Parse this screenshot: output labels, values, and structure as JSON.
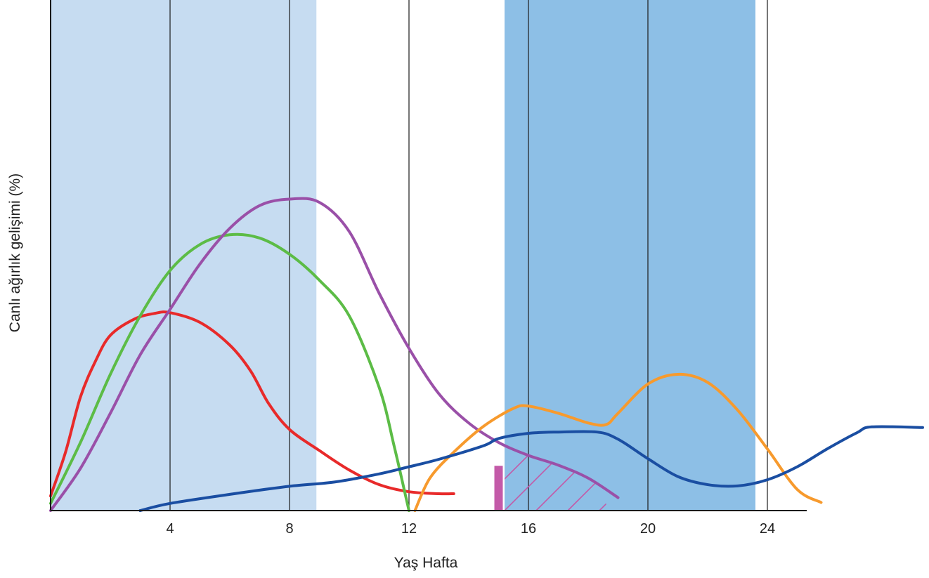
{
  "chart_data": {
    "type": "line",
    "xlabel": "Yaş Hafta",
    "ylabel": "Canlı ağırlık gelişimi (%)",
    "xlim": [
      0,
      26.3
    ],
    "ylim": [
      0,
      100
    ],
    "x_ticks": [
      4,
      8,
      12,
      16,
      20,
      24
    ],
    "y_ticks": [],
    "grid": {
      "vertical": true,
      "horizontal": false
    },
    "shaded_ranges": [
      {
        "x": [
          0,
          8.9
        ],
        "color": "#c6dcf1"
      },
      {
        "x": [
          15.2,
          23.6
        ],
        "color": "#8dbfe6"
      }
    ],
    "marker_bar": {
      "x": 15.0,
      "y": [
        0,
        13.8
      ],
      "color": "#c35aa8"
    },
    "hatched_region": {
      "x": [
        15.2,
        18.6
      ],
      "color": "#c35aa8",
      "description": "area under purple curve after marker"
    },
    "series": [
      {
        "color": "#e82a2a",
        "points": [
          [
            0,
            4.5
          ],
          [
            0.5,
            18
          ],
          [
            1,
            35
          ],
          [
            1.5,
            46
          ],
          [
            2,
            54
          ],
          [
            2.8,
            59
          ],
          [
            3.5,
            60.8
          ],
          [
            4,
            61
          ],
          [
            5,
            58
          ],
          [
            6,
            51
          ],
          [
            6.7,
            43
          ],
          [
            7.3,
            33
          ],
          [
            8,
            25
          ],
          [
            9,
            18.5
          ],
          [
            10,
            12.5
          ],
          [
            11,
            8
          ],
          [
            12,
            5.8
          ],
          [
            13,
            5.2
          ],
          [
            13.5,
            5.2
          ]
        ]
      },
      {
        "color": "#5cbc46",
        "points": [
          [
            0,
            2.2
          ],
          [
            1,
            21
          ],
          [
            2,
            42
          ],
          [
            3,
            60
          ],
          [
            4,
            74
          ],
          [
            5,
            82
          ],
          [
            6,
            85
          ],
          [
            7,
            84
          ],
          [
            8,
            79
          ],
          [
            9,
            71
          ],
          [
            10,
            60
          ],
          [
            11,
            38
          ],
          [
            11.5,
            20
          ],
          [
            11.9,
            4
          ],
          [
            12,
            0
          ]
        ]
      },
      {
        "color": "#9a50a8",
        "points": [
          [
            0,
            0
          ],
          [
            1,
            13
          ],
          [
            2,
            30
          ],
          [
            3,
            48
          ],
          [
            4,
            62
          ],
          [
            5,
            76
          ],
          [
            6,
            87
          ],
          [
            7,
            94
          ],
          [
            8,
            96
          ],
          [
            9,
            95
          ],
          [
            10,
            86
          ],
          [
            11,
            67
          ],
          [
            12,
            50
          ],
          [
            13,
            36
          ],
          [
            14,
            27
          ],
          [
            15,
            21
          ],
          [
            16,
            17
          ],
          [
            17,
            14
          ],
          [
            18,
            10
          ],
          [
            19,
            4
          ]
        ]
      },
      {
        "color": "#f79a2d",
        "points": [
          [
            12.2,
            0
          ],
          [
            12.7,
            10
          ],
          [
            13.5,
            18
          ],
          [
            14.5,
            26
          ],
          [
            15.5,
            31.5
          ],
          [
            16,
            32.2
          ],
          [
            17,
            30
          ],
          [
            18,
            27
          ],
          [
            18.6,
            26.5
          ],
          [
            19,
            30
          ],
          [
            20,
            39
          ],
          [
            21,
            42
          ],
          [
            22,
            39.5
          ],
          [
            23,
            31
          ],
          [
            24,
            19
          ],
          [
            25,
            6.5
          ],
          [
            25.8,
            2.5
          ]
        ]
      },
      {
        "color": "#1a4ea2",
        "points": [
          [
            3.0,
            0
          ],
          [
            4,
            2.2
          ],
          [
            6,
            5
          ],
          [
            8,
            7.5
          ],
          [
            9.5,
            8.8
          ],
          [
            11,
            11.3
          ],
          [
            12,
            13.5
          ],
          [
            13,
            15.8
          ],
          [
            14.5,
            20
          ],
          [
            15,
            22.2
          ],
          [
            16,
            23.8
          ],
          [
            17,
            24.2
          ],
          [
            18.3,
            24.2
          ],
          [
            19,
            22
          ],
          [
            20,
            16
          ],
          [
            21,
            10.5
          ],
          [
            22,
            8
          ],
          [
            23,
            7.6
          ],
          [
            24,
            9.5
          ],
          [
            25,
            13.5
          ],
          [
            26,
            19
          ],
          [
            27,
            24
          ],
          [
            27.5,
            25.8
          ],
          [
            29.2,
            25.6
          ]
        ]
      }
    ]
  }
}
